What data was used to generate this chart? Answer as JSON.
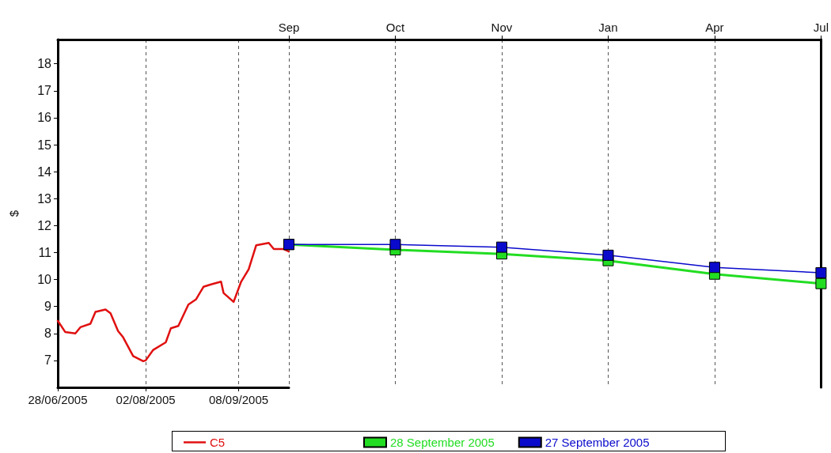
{
  "chart_data": [
    {
      "type": "line",
      "ylabel": "$",
      "xlim": [
        "2005-06-28",
        "2005-09-28"
      ],
      "xticks": [
        {
          "value": "2005-06-28",
          "label": "28/06/2005"
        },
        {
          "value": "2005-08-02",
          "label": "02/08/2005"
        },
        {
          "value": "2005-09-08",
          "label": "08/09/2005"
        }
      ],
      "ylim": [
        6,
        18.9
      ],
      "yticks": [
        7,
        8,
        9,
        10,
        11,
        12,
        13,
        14,
        15,
        16,
        17,
        18
      ],
      "grid": "x",
      "legend": "bottom",
      "marker": "none",
      "series": [
        {
          "name": "C5",
          "color": "#e01010",
          "x": [
            "2005-06-28",
            "2005-07-01",
            "2005-07-05",
            "2005-07-07",
            "2005-07-11",
            "2005-07-13",
            "2005-07-17",
            "2005-07-19",
            "2005-07-22",
            "2005-07-24",
            "2005-07-28",
            "2005-08-01",
            "2005-08-02",
            "2005-08-05",
            "2005-08-10",
            "2005-08-12",
            "2005-08-15",
            "2005-08-19",
            "2005-08-22",
            "2005-08-25",
            "2005-08-28",
            "2005-09-01",
            "2005-09-02",
            "2005-09-06",
            "2005-09-09",
            "2005-09-12",
            "2005-09-15",
            "2005-09-20",
            "2005-09-22",
            "2005-09-26",
            "2005-09-28"
          ],
          "values": [
            8.47,
            8.05,
            8.0,
            8.23,
            8.36,
            8.8,
            8.89,
            8.75,
            8.09,
            7.86,
            7.16,
            6.97,
            7.0,
            7.39,
            7.67,
            8.19,
            8.28,
            9.07,
            9.26,
            9.73,
            9.82,
            9.92,
            9.5,
            9.17,
            9.92,
            10.38,
            11.27,
            11.36,
            11.13,
            11.13,
            11.04
          ]
        }
      ]
    },
    {
      "type": "line",
      "categories": [
        "Sep",
        "Oct",
        "Nov",
        "Jan",
        "Apr",
        "Jul"
      ],
      "ylim": [
        6,
        18.9
      ],
      "tick_labels": "x",
      "grid": "x",
      "legend": "bottom",
      "marker": "square",
      "series": [
        {
          "name": "28 September 2005",
          "color": "#22dd22",
          "values": [
            11.3,
            11.1,
            10.95,
            10.7,
            10.2,
            9.85
          ]
        },
        {
          "name": "27 September 2005",
          "color": "#0a0acc",
          "values": [
            11.3,
            11.3,
            11.2,
            10.9,
            10.45,
            10.25
          ]
        }
      ]
    }
  ]
}
